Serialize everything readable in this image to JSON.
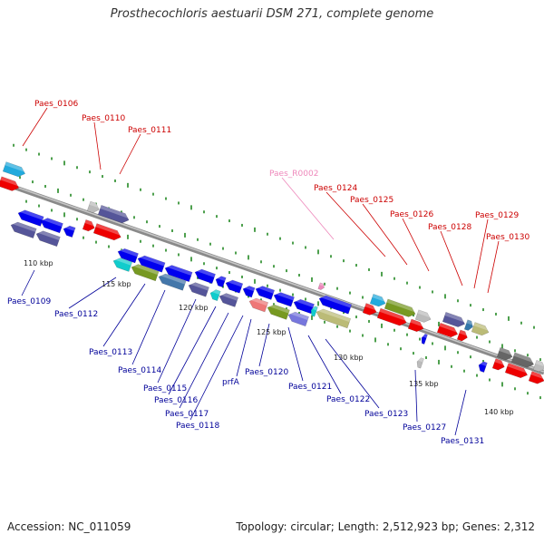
{
  "title": "Prosthecochloris aestuarii DSM 271, complete genome",
  "footer": {
    "accession": "Accession: NC_011059",
    "summary": "Topology: circular; Length: 2,512,923 bp; Genes: 2,312"
  },
  "colors": {
    "top_label": "#cc0000",
    "bottom_label": "#000099",
    "rna_label": "#ee88bb",
    "backbone": "#999999",
    "tick": "#228822"
  },
  "ticks": [
    "110 kbp",
    "115 kbp",
    "120 kbp",
    "125 kbp",
    "130 kbp",
    "135 kbp",
    "140 kbp"
  ],
  "top_labels": [
    "Paes_0106",
    "Paes_0110",
    "Paes_0111",
    "Paes_R0002",
    "Paes_0124",
    "Paes_0125",
    "Paes_0126",
    "Paes_0128",
    "Paes_0129",
    "Paes_0130"
  ],
  "bottom_labels": [
    "Paes_0109",
    "Paes_0112",
    "Paes_0113",
    "Paes_0114",
    "Paes_0115",
    "Paes_0116",
    "Paes_0117",
    "Paes_0118",
    "prfA",
    "Paes_0120",
    "Paes_0121",
    "Paes_0122",
    "Paes_0123",
    "Paes_0127",
    "Paes_0131"
  ]
}
